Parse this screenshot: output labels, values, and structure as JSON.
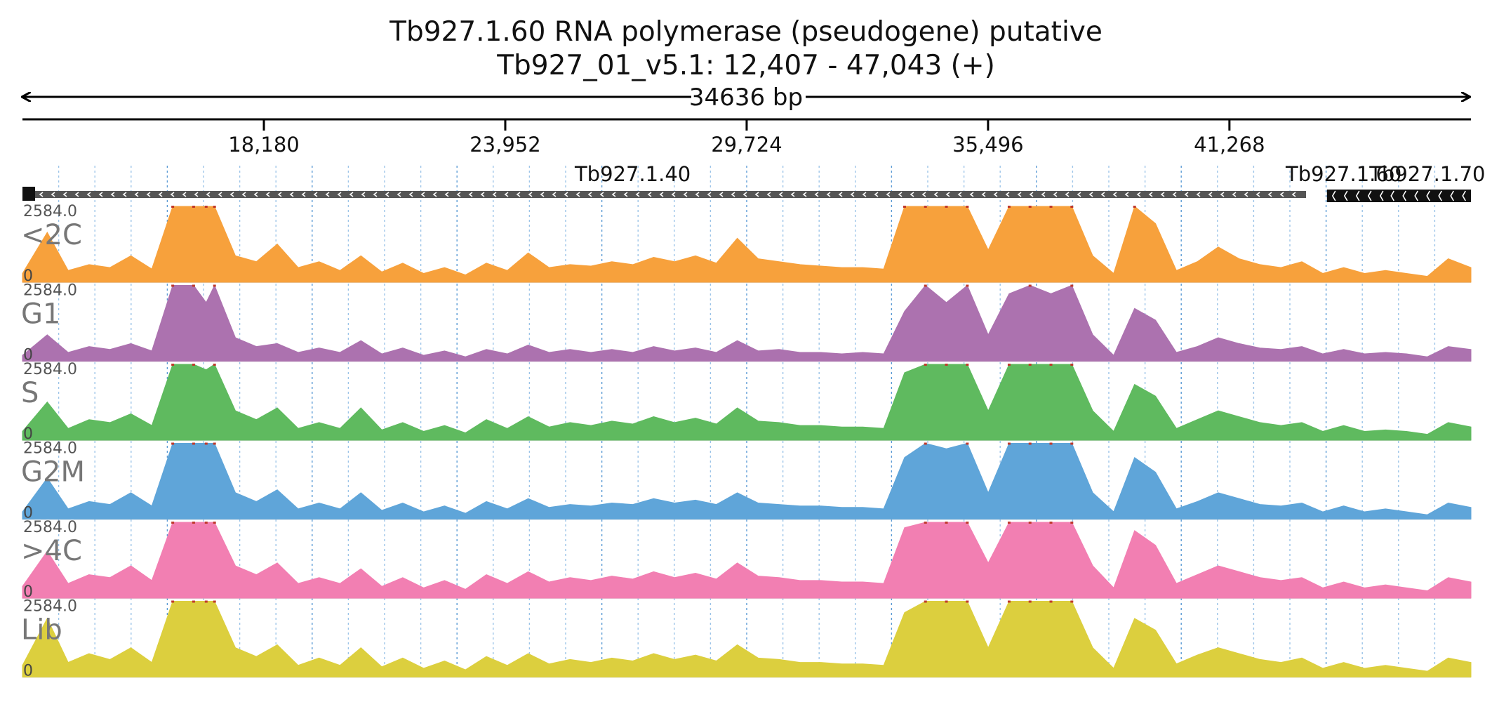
{
  "header": {
    "gene_title": "Tb927.1.60  RNA polymerase (pseudogene)  putative",
    "locus": "Tb927_01_v5.1: 12,407 - 47,043 (+)",
    "span_label": "34636 bp"
  },
  "chart_data": {
    "type": "area",
    "title": "Tb927.1.60  RNA polymerase (pseudogene)  putative",
    "subtitle": "Tb927_01_v5.1: 12,407 - 47,043 (+)",
    "xlim": [
      12407,
      47043
    ],
    "ylim": [
      0,
      2584.0
    ],
    "x_ticks": [
      18180,
      23952,
      29724,
      35496,
      41268
    ],
    "x_tick_labels": [
      "18,180",
      "23,952",
      "29,724",
      "35,496",
      "41,268"
    ],
    "genes": [
      {
        "name": "Tb927.1.40",
        "start": 12407,
        "end": 43100,
        "strand": "-",
        "label": "Tb927.1.40",
        "label_x": 27000
      },
      {
        "name": "Tb927.1.60",
        "start": 43600,
        "end": 45600,
        "strand": "-",
        "label": "Tb927.1.60",
        "label_x": 44000
      },
      {
        "name": "Tb927.1.70",
        "start": 45000,
        "end": 47043,
        "strand": "-",
        "label": "Tb927.1.70",
        "label_x": 46000
      }
    ],
    "x": [
      12407,
      13000,
      13500,
      14000,
      14500,
      15000,
      15500,
      16000,
      16500,
      16800,
      17000,
      17500,
      18000,
      18500,
      19000,
      19500,
      20000,
      20500,
      21000,
      21500,
      22000,
      22500,
      23000,
      23500,
      24000,
      24500,
      25000,
      25500,
      26000,
      26500,
      27000,
      27500,
      28000,
      28500,
      29000,
      29500,
      30000,
      30500,
      31000,
      31500,
      32000,
      32500,
      33000,
      33500,
      34000,
      34500,
      35000,
      35500,
      36000,
      36500,
      37000,
      37500,
      38000,
      38500,
      39000,
      39500,
      40000,
      40500,
      41000,
      41500,
      42000,
      42500,
      43000,
      43500,
      44000,
      44500,
      45000,
      45500,
      46000,
      46500,
      47043
    ],
    "series": [
      {
        "name": "<2C",
        "color": "#f7a13c",
        "values": [
          300,
          1700,
          400,
          600,
          500,
          900,
          450,
          2584,
          2584,
          2584,
          2584,
          900,
          700,
          1300,
          500,
          700,
          400,
          900,
          350,
          650,
          300,
          500,
          250,
          650,
          400,
          1000,
          500,
          600,
          550,
          700,
          600,
          850,
          700,
          900,
          650,
          1500,
          800,
          700,
          600,
          550,
          500,
          500,
          450,
          2584,
          2584,
          2584,
          2584,
          1100,
          2584,
          2584,
          2584,
          2584,
          900,
          300,
          2584,
          2000,
          400,
          700,
          1200,
          800,
          600,
          500,
          700,
          300,
          500,
          300,
          400,
          300,
          200,
          800,
          500
        ]
      },
      {
        "name": "G1",
        "color": "#ac72af",
        "values": [
          200,
          900,
          300,
          500,
          400,
          600,
          350,
          2584,
          2584,
          2000,
          2584,
          800,
          500,
          600,
          300,
          450,
          300,
          700,
          250,
          450,
          200,
          350,
          150,
          400,
          250,
          550,
          300,
          400,
          300,
          400,
          300,
          500,
          350,
          450,
          300,
          700,
          350,
          400,
          300,
          300,
          250,
          300,
          250,
          1700,
          2584,
          2000,
          2584,
          900,
          2300,
          2584,
          2300,
          2584,
          900,
          200,
          1800,
          1400,
          300,
          500,
          800,
          600,
          450,
          400,
          500,
          250,
          400,
          250,
          300,
          250,
          150,
          500,
          400
        ]
      },
      {
        "name": "S",
        "color": "#5fba5f",
        "values": [
          300,
          1300,
          400,
          700,
          600,
          900,
          500,
          2584,
          2584,
          2400,
          2584,
          1000,
          700,
          1100,
          400,
          600,
          400,
          1100,
          350,
          600,
          300,
          500,
          250,
          700,
          400,
          800,
          450,
          600,
          500,
          650,
          550,
          800,
          600,
          750,
          550,
          1100,
          650,
          600,
          500,
          500,
          450,
          450,
          400,
          2300,
          2584,
          2584,
          2584,
          1000,
          2584,
          2584,
          2584,
          2584,
          1000,
          300,
          1900,
          1500,
          400,
          700,
          1000,
          800,
          600,
          500,
          600,
          300,
          500,
          300,
          350,
          300,
          200,
          600,
          450
        ]
      },
      {
        "name": "G2M",
        "color": "#5fa5d9",
        "values": [
          250,
          1400,
          350,
          600,
          500,
          900,
          450,
          2584,
          2584,
          2584,
          2584,
          900,
          600,
          1000,
          350,
          550,
          350,
          900,
          300,
          550,
          250,
          450,
          200,
          600,
          350,
          700,
          400,
          500,
          450,
          550,
          500,
          700,
          550,
          650,
          500,
          900,
          550,
          500,
          450,
          450,
          400,
          400,
          350,
          2100,
          2584,
          2400,
          2584,
          900,
          2584,
          2584,
          2584,
          2584,
          900,
          250,
          2100,
          1600,
          350,
          600,
          900,
          700,
          500,
          450,
          550,
          250,
          450,
          250,
          350,
          250,
          150,
          550,
          400
        ]
      },
      {
        "name": ">4C",
        "color": "#f27fb2",
        "values": [
          400,
          1600,
          500,
          800,
          700,
          1100,
          600,
          2584,
          2584,
          2584,
          2584,
          1100,
          800,
          1200,
          500,
          700,
          500,
          1000,
          400,
          700,
          350,
          600,
          300,
          800,
          500,
          900,
          550,
          700,
          600,
          750,
          650,
          900,
          700,
          850,
          650,
          1200,
          750,
          700,
          600,
          600,
          550,
          550,
          500,
          2400,
          2584,
          2584,
          2584,
          1200,
          2584,
          2584,
          2584,
          2584,
          1100,
          350,
          2300,
          1800,
          500,
          800,
          1100,
          900,
          700,
          600,
          700,
          350,
          550,
          350,
          450,
          350,
          250,
          700,
          550
        ]
      },
      {
        "name": "Lib",
        "color": "#dccf3e",
        "values": [
          400,
          2000,
          500,
          800,
          600,
          1000,
          500,
          2584,
          2584,
          2584,
          2584,
          1000,
          700,
          1100,
          400,
          650,
          400,
          1000,
          350,
          650,
          300,
          550,
          250,
          700,
          400,
          800,
          450,
          600,
          500,
          650,
          550,
          800,
          600,
          750,
          550,
          1100,
          650,
          600,
          500,
          500,
          450,
          450,
          400,
          2200,
          2584,
          2584,
          2584,
          1000,
          2584,
          2584,
          2584,
          2584,
          1000,
          300,
          2000,
          1600,
          450,
          750,
          1000,
          800,
          600,
          500,
          650,
          300,
          500,
          300,
          400,
          300,
          200,
          650,
          500
        ]
      }
    ],
    "track_max_label": "2584.0",
    "track_min_label": "0",
    "grid": true
  }
}
